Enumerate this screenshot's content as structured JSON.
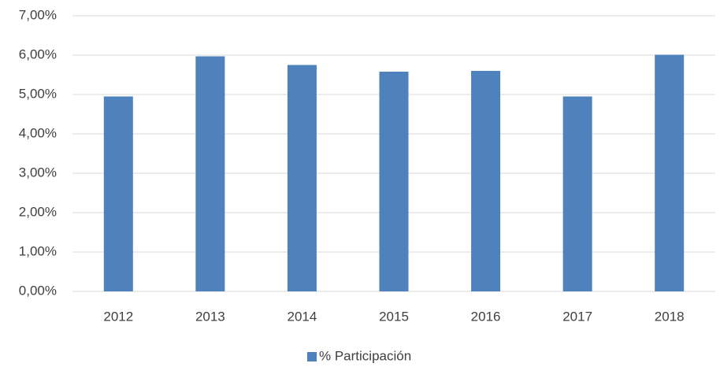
{
  "chart_data": {
    "type": "bar",
    "categories": [
      "2012",
      "2013",
      "2014",
      "2015",
      "2016",
      "2017",
      "2018"
    ],
    "series": [
      {
        "name": "% Participación",
        "color": "#4f81bd",
        "values": [
          4.95,
          5.97,
          5.75,
          5.58,
          5.6,
          4.95,
          6.01
        ]
      }
    ],
    "ylim": [
      0,
      7
    ],
    "yticks": [
      {
        "value": 0,
        "label": "0,00%"
      },
      {
        "value": 1,
        "label": "1,00%"
      },
      {
        "value": 2,
        "label": "2,00%"
      },
      {
        "value": 3,
        "label": "3,00%"
      },
      {
        "value": 4,
        "label": "4,00%"
      },
      {
        "value": 5,
        "label": "5,00%"
      },
      {
        "value": 6,
        "label": "6,00%"
      },
      {
        "value": 7,
        "label": "7,00%"
      }
    ],
    "grid": true,
    "legend": "bottom"
  }
}
